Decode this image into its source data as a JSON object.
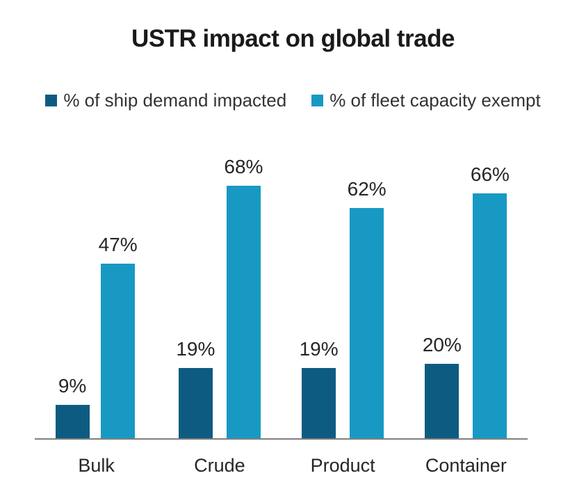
{
  "chart_data": {
    "type": "bar",
    "title": "USTR impact on global trade",
    "categories": [
      "Bulk",
      "Crude",
      "Product",
      "Container"
    ],
    "series": [
      {
        "name": "% of ship demand impacted",
        "color": "#0E5B82",
        "values": [
          9,
          19,
          19,
          20
        ]
      },
      {
        "name": "% of fleet capacity exempt",
        "color": "#1899C4",
        "values": [
          47,
          68,
          62,
          66
        ]
      }
    ],
    "value_label_format": "{v}%",
    "xlabel": "",
    "ylabel": "",
    "ylim": [
      0,
      85
    ],
    "grid": false,
    "legend_position": "top",
    "y_axis_visible": false
  },
  "colors": {
    "background": "#ffffff",
    "axis_line": "#7f7f7f",
    "title_text": "#1a1a1a",
    "value_label_text": "#262626",
    "category_label_text": "#262626",
    "legend_text": "#333333"
  }
}
